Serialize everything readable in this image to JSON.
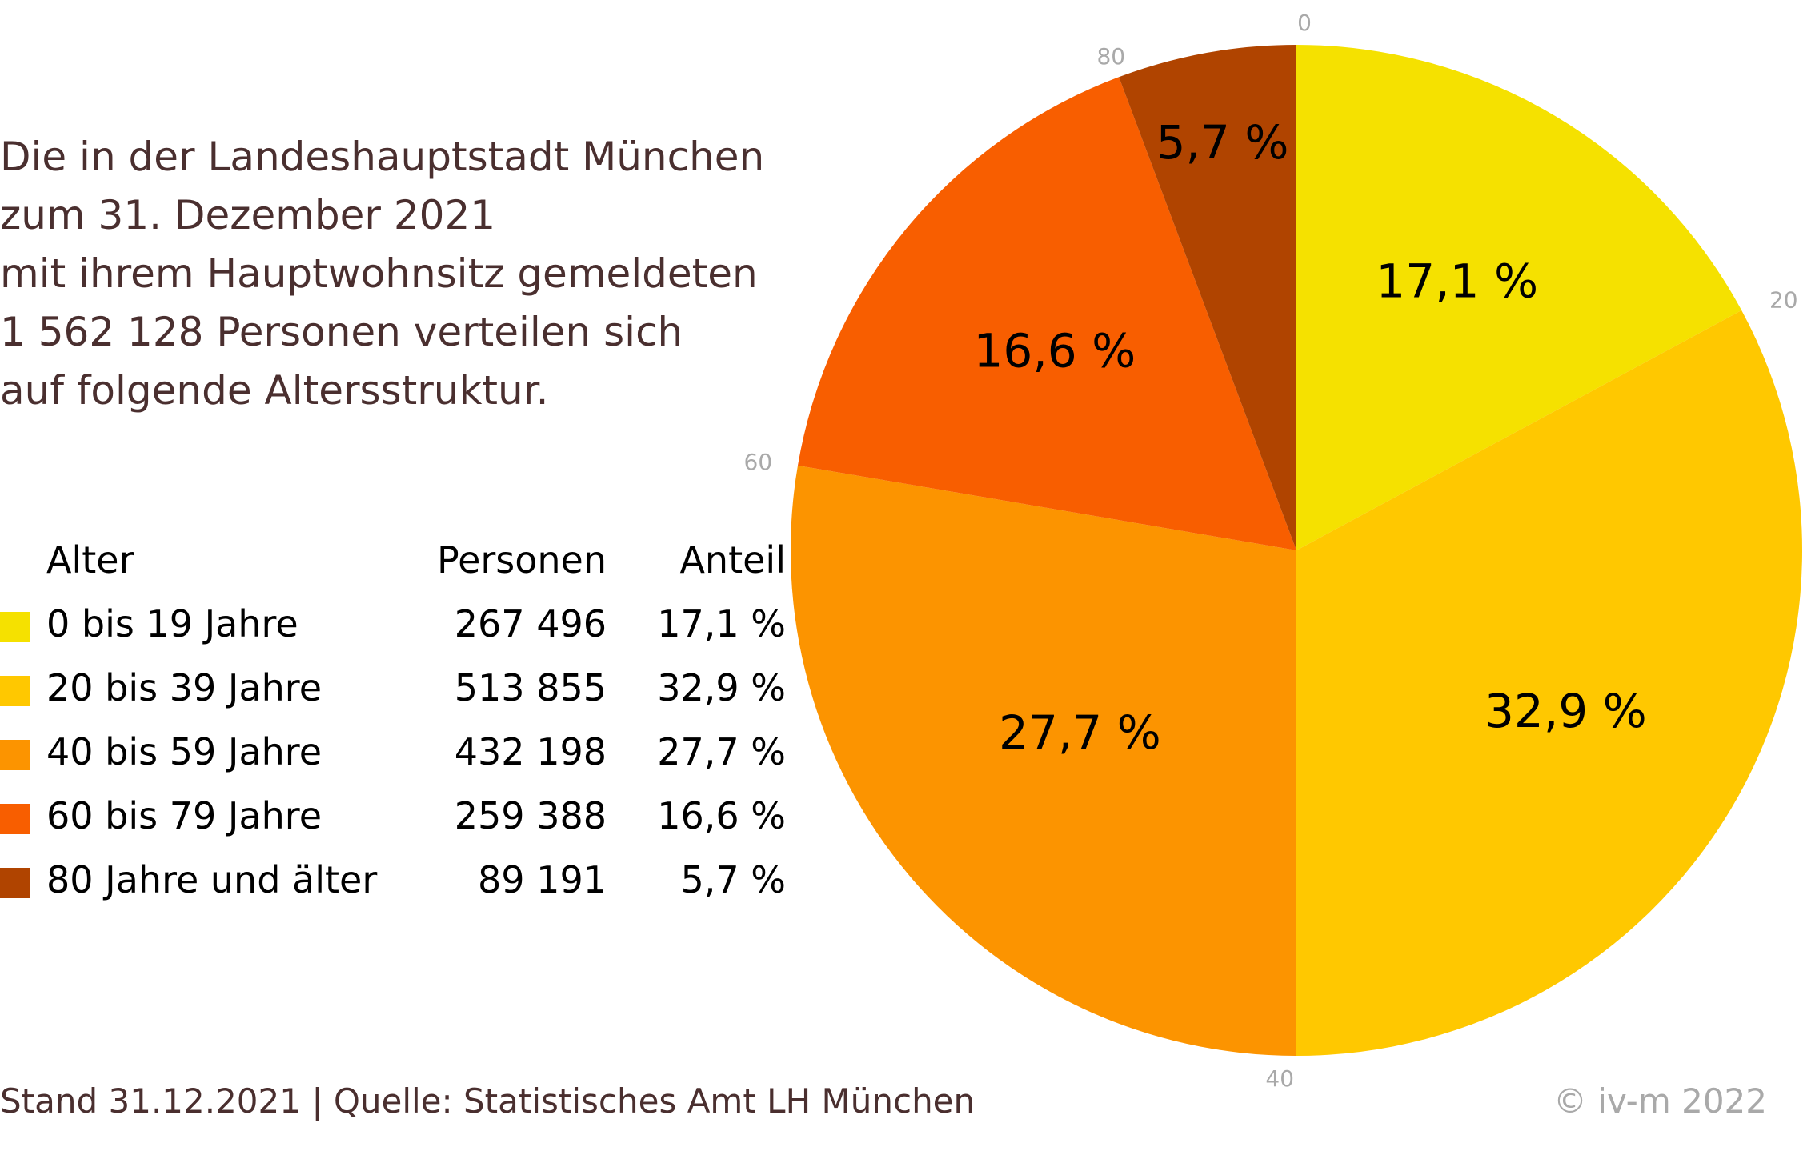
{
  "description": {
    "lines": [
      "Die in der Landeshauptstadt München",
      "zum 31. Dezember 2021",
      "mit ihrem Hauptwohnsitz gemeldeten",
      "1 562 128 Personen verteilen sich",
      "auf folgende Altersstruktur."
    ]
  },
  "legend": {
    "headers": {
      "age": "Alter",
      "persons": "Personen",
      "share": "Anteil"
    },
    "rows": [
      {
        "age": "0 bis 19 Jahre",
        "persons": "267 496",
        "share": "17,1 %",
        "color": "#f5e100"
      },
      {
        "age": "20 bis 39 Jahre",
        "persons": "513 855",
        "share": "32,9 %",
        "color": "#ffc800"
      },
      {
        "age": "40 bis 59 Jahre",
        "persons": "432 198",
        "share": "27,7 %",
        "color": "#fc9400"
      },
      {
        "age": "60 bis 79 Jahre",
        "persons": "259 388",
        "share": "16,6 %",
        "color": "#f85e00"
      },
      {
        "age": "80 Jahre und älter",
        "persons": "89 191",
        "share": "5,7 %",
        "color": "#b04400"
      }
    ]
  },
  "chart_data": {
    "type": "pie",
    "categories": [
      "0 bis 19 Jahre",
      "20 bis 39 Jahre",
      "40 bis 59 Jahre",
      "60 bis 79 Jahre",
      "80 Jahre und älter"
    ],
    "values": [
      267496,
      513855,
      432198,
      259388,
      89191
    ],
    "slice_labels": [
      "17,1 %",
      "32,9 %",
      "27,7 %",
      "16,6 %",
      "5,7 %"
    ],
    "colors": [
      "#f5e100",
      "#ffc800",
      "#fc9400",
      "#f85e00",
      "#b04400"
    ],
    "boundary_ticks": [
      "0",
      "20",
      "40",
      "60",
      "80"
    ],
    "start_angle": "12 o'clock",
    "direction": "clockwise"
  },
  "footer": {
    "source": "Stand 31.12.2021 |  Quelle: Statistisches Amt LH München",
    "copyright": "© iv-m 2022"
  }
}
